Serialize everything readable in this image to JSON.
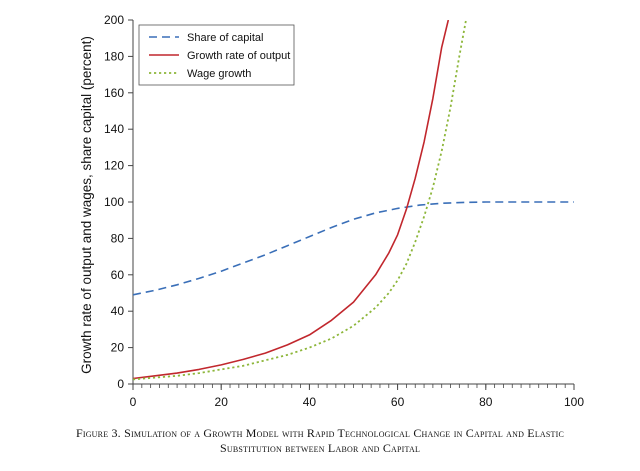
{
  "caption": {
    "line1": "Figure 3. Simulation of a Growth Model with Rapid Technological Change in Capital and Elastic",
    "line2": "Substitution between Labor and Capital"
  },
  "chart_data": {
    "type": "line",
    "ylabel": "Growth rate of output and wages, share capital (percent)",
    "xlabel": "",
    "xlim": [
      0,
      100
    ],
    "ylim": [
      0,
      200
    ],
    "x_ticks": [
      0,
      20,
      40,
      60,
      80,
      100
    ],
    "y_ticks": [
      0,
      20,
      40,
      60,
      80,
      100,
      120,
      140,
      160,
      180,
      200
    ],
    "grid": false,
    "legend_position": "top-left",
    "series": [
      {
        "name": "Share of capital",
        "color": "#3a6fb8",
        "style": "dashed",
        "x": [
          0,
          5,
          10,
          15,
          20,
          25,
          30,
          35,
          40,
          45,
          50,
          55,
          60,
          65,
          70,
          75,
          80,
          85,
          90,
          95,
          100
        ],
        "y": [
          49,
          51.5,
          54.5,
          58,
          62,
          66.5,
          71,
          76,
          81,
          86,
          90.5,
          94,
          96.5,
          98.3,
          99.3,
          99.8,
          100,
          100,
          100,
          100,
          100
        ]
      },
      {
        "name": "Growth rate of output",
        "color": "#c1272d",
        "style": "solid",
        "x": [
          0,
          5,
          10,
          15,
          20,
          25,
          30,
          35,
          40,
          45,
          50,
          55,
          58,
          60,
          62,
          64,
          66,
          68,
          70,
          71.5
        ],
        "y": [
          3,
          4.5,
          6,
          8,
          10.5,
          13.5,
          17,
          21.5,
          27,
          35,
          45,
          60,
          72,
          82,
          96,
          113,
          133,
          157,
          185,
          200
        ]
      },
      {
        "name": "Wage growth",
        "color": "#8db63a",
        "style": "dotted",
        "x": [
          0,
          5,
          10,
          15,
          20,
          25,
          30,
          35,
          40,
          45,
          50,
          55,
          58,
          60,
          62,
          64,
          66,
          68,
          70,
          72,
          74,
          75.5
        ],
        "y": [
          2.5,
          3.5,
          4.5,
          6,
          8,
          10,
          13,
          16,
          20,
          25,
          32,
          42,
          50,
          57,
          66,
          78,
          92,
          108,
          128,
          152,
          180,
          200
        ]
      }
    ]
  }
}
